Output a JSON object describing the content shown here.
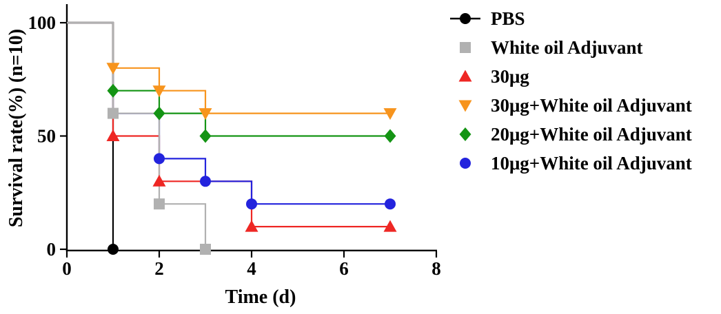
{
  "figure": {
    "background": "#ffffff",
    "axis_color": "#000000",
    "text_color": "#000000"
  },
  "chart_data": {
    "type": "line",
    "subtype": "kaplan-meier-survival-step",
    "title": "",
    "xlabel": "Time (d)",
    "ylabel": "Survival rate(%) (n=10)",
    "xlim": [
      0,
      8
    ],
    "ylim": [
      0,
      100
    ],
    "xticks": [
      0,
      2,
      4,
      6,
      8
    ],
    "yticks": [
      0,
      50,
      100
    ],
    "grid": false,
    "legend_position": "right",
    "draw_order": [
      0,
      2,
      3,
      4,
      5,
      1
    ],
    "series": [
      {
        "name": "PBS",
        "color": "#000000",
        "marker": "circle",
        "legend_line": true,
        "steps": [
          [
            0,
            100
          ],
          [
            1,
            100
          ],
          [
            1,
            0
          ]
        ],
        "markers_at": [
          [
            1,
            0
          ]
        ]
      },
      {
        "name": "White oil Adjuvant",
        "color": "#b1b1b1",
        "marker": "square",
        "legend_line": false,
        "steps": [
          [
            0,
            100
          ],
          [
            1,
            100
          ],
          [
            1,
            60
          ],
          [
            2,
            60
          ],
          [
            2,
            20
          ],
          [
            3,
            20
          ],
          [
            3,
            0
          ]
        ],
        "markers_at": [
          [
            1,
            60
          ],
          [
            2,
            20
          ],
          [
            3,
            0
          ]
        ]
      },
      {
        "name": "30μg",
        "color": "#ee2724",
        "marker": "triangle-up",
        "legend_line": false,
        "steps": [
          [
            0,
            100
          ],
          [
            1,
            100
          ],
          [
            1,
            50
          ],
          [
            2,
            50
          ],
          [
            2,
            30
          ],
          [
            4,
            30
          ],
          [
            4,
            10
          ],
          [
            7,
            10
          ]
        ],
        "markers_at": [
          [
            1,
            50
          ],
          [
            2,
            30
          ],
          [
            4,
            10
          ],
          [
            7,
            10
          ]
        ]
      },
      {
        "name": "30μg+White oil Adjuvant",
        "color": "#f7941d",
        "marker": "triangle-down",
        "legend_line": false,
        "steps": [
          [
            0,
            100
          ],
          [
            1,
            100
          ],
          [
            1,
            80
          ],
          [
            2,
            80
          ],
          [
            2,
            70
          ],
          [
            3,
            70
          ],
          [
            3,
            60
          ],
          [
            7,
            60
          ]
        ],
        "markers_at": [
          [
            1,
            80
          ],
          [
            2,
            70
          ],
          [
            3,
            60
          ],
          [
            7,
            60
          ]
        ]
      },
      {
        "name": "20μg+White oil Adjuvant",
        "color": "#149414",
        "marker": "diamond",
        "legend_line": false,
        "steps": [
          [
            0,
            100
          ],
          [
            1,
            100
          ],
          [
            1,
            70
          ],
          [
            2,
            70
          ],
          [
            2,
            60
          ],
          [
            3,
            60
          ],
          [
            3,
            50
          ],
          [
            7,
            50
          ]
        ],
        "markers_at": [
          [
            1,
            70
          ],
          [
            2,
            60
          ],
          [
            3,
            50
          ],
          [
            7,
            50
          ]
        ]
      },
      {
        "name": "10μg+White oil Adjuvant",
        "color": "#2323dd",
        "marker": "circle",
        "legend_line": false,
        "steps": [
          [
            0,
            100
          ],
          [
            1,
            100
          ],
          [
            1,
            60
          ],
          [
            2,
            60
          ],
          [
            2,
            40
          ],
          [
            3,
            40
          ],
          [
            3,
            30
          ],
          [
            4,
            30
          ],
          [
            4,
            20
          ],
          [
            7,
            20
          ]
        ],
        "markers_at": [
          [
            2,
            40
          ],
          [
            3,
            30
          ],
          [
            4,
            20
          ],
          [
            7,
            20
          ]
        ]
      }
    ]
  }
}
